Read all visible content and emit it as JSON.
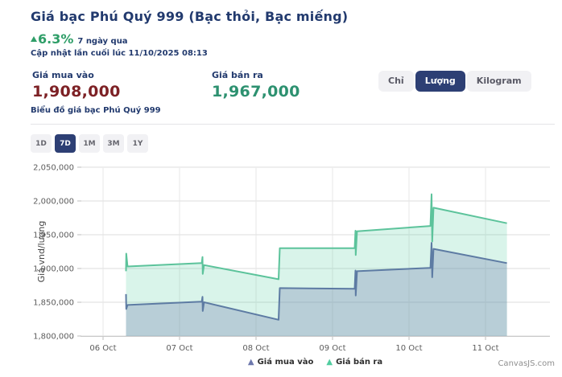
{
  "header": {
    "title": "Giá bạc Phú Quý 999 (Bạc thỏi, Bạc miếng)",
    "change_percent": "6.3%",
    "change_period": "7 ngày qua",
    "last_updated": "Cập nhật lần cuối lúc 11/10/2025 08:13"
  },
  "prices": {
    "buy_label": "Giá mua vào",
    "buy_value": "1,908,000",
    "sell_label": "Giá bán ra",
    "sell_value": "1,967,000"
  },
  "unit_toggle": {
    "options": [
      "Chỉ",
      "Lượng",
      "Kilogram"
    ],
    "selected": "Lượng"
  },
  "chart_section": {
    "subtitle": "Biểu đồ giá bạc Phú Quý 999"
  },
  "range": {
    "options": [
      "1D",
      "7D",
      "1M",
      "3M",
      "1Y"
    ],
    "selected": "7D"
  },
  "colors": {
    "navy_text": "#223a6e",
    "active_button": "#2d3f74",
    "positive_green": "#2f9e68",
    "buy_red": "#7d2125",
    "sell_green": "#2d9170"
  },
  "chart_data": {
    "type": "area",
    "ylabel": "Giá vnd/lượng",
    "xlabel": "",
    "ylim": [
      1800000,
      2062000
    ],
    "y_interval": 50000,
    "grid": true,
    "legend_position": "bottom-center",
    "watermark": "CanvasJS.com",
    "y_ticks": [
      1800000,
      1850000,
      1900000,
      1950000,
      2000000,
      2050000
    ],
    "x_ticks": [
      "06 Oct",
      "07 Oct",
      "08 Oct",
      "09 Oct",
      "10 Oct",
      "11 Oct"
    ],
    "x_unit": "day_of_october",
    "series": [
      {
        "name": "Giá mua vào",
        "marker": "#6d78ad",
        "color": "#5d7ba3",
        "fill": "rgba(109,120,173,0.30)",
        "points": [
          [
            6.3,
            1862000
          ],
          [
            6.303,
            1840000
          ],
          [
            6.32,
            1846000
          ],
          [
            7.29,
            1851000
          ],
          [
            7.3,
            1858000
          ],
          [
            7.303,
            1837000
          ],
          [
            7.32,
            1850000
          ],
          [
            8.295,
            1824000
          ],
          [
            8.31,
            1871000
          ],
          [
            9.29,
            1870000
          ],
          [
            9.3,
            1897000
          ],
          [
            9.303,
            1860000
          ],
          [
            9.32,
            1896000
          ],
          [
            10.28,
            1901000
          ],
          [
            10.295,
            1938000
          ],
          [
            10.303,
            1887000
          ],
          [
            10.32,
            1929000
          ],
          [
            11.28,
            1908000
          ]
        ]
      },
      {
        "name": "Giá bán ra",
        "marker": "#51cda0",
        "color": "#5cc39b",
        "fill": "rgba(81,205,160,0.22)",
        "points": [
          [
            6.3,
            1896000
          ],
          [
            6.303,
            1922000
          ],
          [
            6.32,
            1903000
          ],
          [
            7.29,
            1908000
          ],
          [
            7.3,
            1917000
          ],
          [
            7.303,
            1892000
          ],
          [
            7.32,
            1905000
          ],
          [
            8.295,
            1884000
          ],
          [
            8.31,
            1930000
          ],
          [
            9.29,
            1930000
          ],
          [
            9.3,
            1956000
          ],
          [
            9.303,
            1920000
          ],
          [
            9.32,
            1955000
          ],
          [
            10.28,
            1963000
          ],
          [
            10.295,
            2010000
          ],
          [
            10.303,
            1940000
          ],
          [
            10.32,
            1990000
          ],
          [
            11.28,
            1967000
          ]
        ]
      }
    ]
  }
}
